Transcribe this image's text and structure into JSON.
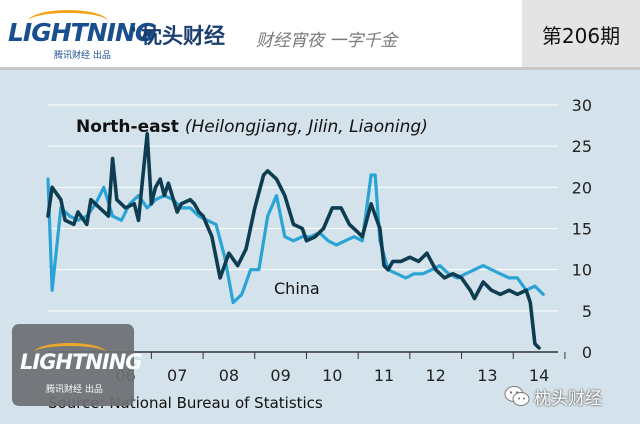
{
  "header": {
    "brand_logo": "LIGHTNING",
    "brand_sub": "腾讯财经 出品",
    "brand_dot": "·",
    "column_name": "枕头财经",
    "slogan": "财经宵夜 一字千金",
    "issue": "第206期"
  },
  "overlay": {
    "logo": "LIGHTNING",
    "sub": "腾讯财经 出品"
  },
  "watermark": {
    "text": "枕头财经"
  },
  "chart_data": {
    "type": "line",
    "title_bold": "North-east",
    "title_italic": "(Heilongjiang, Jilin, Liaoning)",
    "annotation": "China",
    "source": "Source: National Bureau of Statistics",
    "y_axis_side": "right",
    "ylim": [
      0,
      30
    ],
    "yticks": [
      "0",
      "5",
      "10",
      "15",
      "20",
      "25",
      "30"
    ],
    "xlim": [
      2005.0,
      2014.75
    ],
    "xticks": [
      "06",
      "07",
      "08",
      "09",
      "10",
      "11",
      "12",
      "13",
      "14"
    ],
    "grid": true,
    "colors": {
      "background": "#d4e3eb",
      "northeast": "#0e3d52",
      "china": "#2aa4d6",
      "grid": "#ffffff"
    },
    "series": [
      {
        "key": "northeast",
        "label": "North-east (Heilongjiang, Jilin, Liaoning)",
        "x": [
          2005.0,
          2005.08,
          2005.25,
          2005.33,
          2005.5,
          2005.58,
          2005.75,
          2005.83,
          2006.0,
          2006.17,
          2006.25,
          2006.33,
          2006.5,
          2006.67,
          2006.75,
          2006.83,
          2006.92,
          2007.0,
          2007.08,
          2007.17,
          2007.25,
          2007.33,
          2007.5,
          2007.58,
          2007.75,
          2007.83,
          2007.92,
          2008.0,
          2008.17,
          2008.33,
          2008.5,
          2008.67,
          2008.83,
          2009.0,
          2009.17,
          2009.25,
          2009.42,
          2009.58,
          2009.75,
          2009.92,
          2010.0,
          2010.17,
          2010.33,
          2010.5,
          2010.67,
          2010.83,
          2011.0,
          2011.08,
          2011.25,
          2011.42,
          2011.5,
          2011.58,
          2011.67,
          2011.83,
          2012.0,
          2012.17,
          2012.33,
          2012.5,
          2012.67,
          2012.83,
          2013.0,
          2013.17,
          2013.25,
          2013.42,
          2013.58,
          2013.75,
          2013.92,
          2014.08,
          2014.25,
          2014.33,
          2014.42,
          2014.5
        ],
        "values": [
          16.5,
          20.0,
          18.5,
          16.0,
          15.5,
          17.0,
          15.5,
          18.5,
          17.5,
          16.5,
          23.5,
          18.5,
          17.5,
          18.0,
          16.0,
          21.0,
          26.5,
          18.0,
          20.0,
          21.0,
          19.0,
          20.5,
          17.0,
          18.0,
          18.5,
          18.0,
          17.0,
          16.5,
          14.0,
          9.0,
          12.0,
          10.5,
          12.5,
          17.5,
          21.5,
          22.0,
          21.0,
          19.0,
          15.5,
          15.0,
          13.5,
          14.0,
          15.0,
          17.5,
          17.5,
          15.5,
          14.5,
          14.0,
          18.0,
          15.0,
          10.5,
          10.0,
          11.0,
          11.0,
          11.5,
          11.0,
          12.0,
          10.0,
          9.0,
          9.5,
          9.0,
          7.5,
          6.5,
          8.5,
          7.5,
          7.0,
          7.5,
          7.0,
          7.5,
          6.0,
          1.0,
          0.5
        ]
      },
      {
        "key": "china",
        "label": "China",
        "x": [
          2005.0,
          2005.08,
          2005.25,
          2005.42,
          2005.58,
          2005.75,
          2005.92,
          2006.08,
          2006.25,
          2006.42,
          2006.58,
          2006.75,
          2006.92,
          2007.08,
          2007.25,
          2007.42,
          2007.58,
          2007.75,
          2007.92,
          2008.08,
          2008.25,
          2008.42,
          2008.58,
          2008.75,
          2008.92,
          2009.08,
          2009.25,
          2009.42,
          2009.58,
          2009.75,
          2009.92,
          2010.08,
          2010.25,
          2010.42,
          2010.58,
          2010.75,
          2010.92,
          2011.08,
          2011.25,
          2011.33,
          2011.42,
          2011.58,
          2011.75,
          2011.92,
          2012.08,
          2012.25,
          2012.42,
          2012.58,
          2012.75,
          2012.92,
          2013.08,
          2013.25,
          2013.42,
          2013.58,
          2013.75,
          2013.92,
          2014.08,
          2014.25,
          2014.42,
          2014.58
        ],
        "values": [
          21.0,
          7.5,
          17.5,
          16.5,
          16.0,
          16.5,
          18.0,
          20.0,
          16.5,
          16.0,
          18.0,
          19.0,
          17.5,
          18.5,
          19.0,
          18.5,
          17.5,
          17.5,
          16.5,
          16.0,
          15.5,
          11.5,
          6.0,
          7.0,
          10.0,
          10.0,
          16.5,
          19.0,
          14.0,
          13.5,
          14.0,
          14.0,
          14.5,
          13.5,
          13.0,
          13.5,
          14.0,
          13.5,
          21.5,
          21.5,
          13.5,
          10.0,
          9.5,
          9.0,
          9.5,
          9.5,
          10.0,
          10.5,
          9.5,
          9.0,
          9.5,
          10.0,
          10.5,
          10.0,
          9.5,
          9.0,
          9.0,
          7.5,
          8.0,
          7.0
        ]
      }
    ]
  }
}
